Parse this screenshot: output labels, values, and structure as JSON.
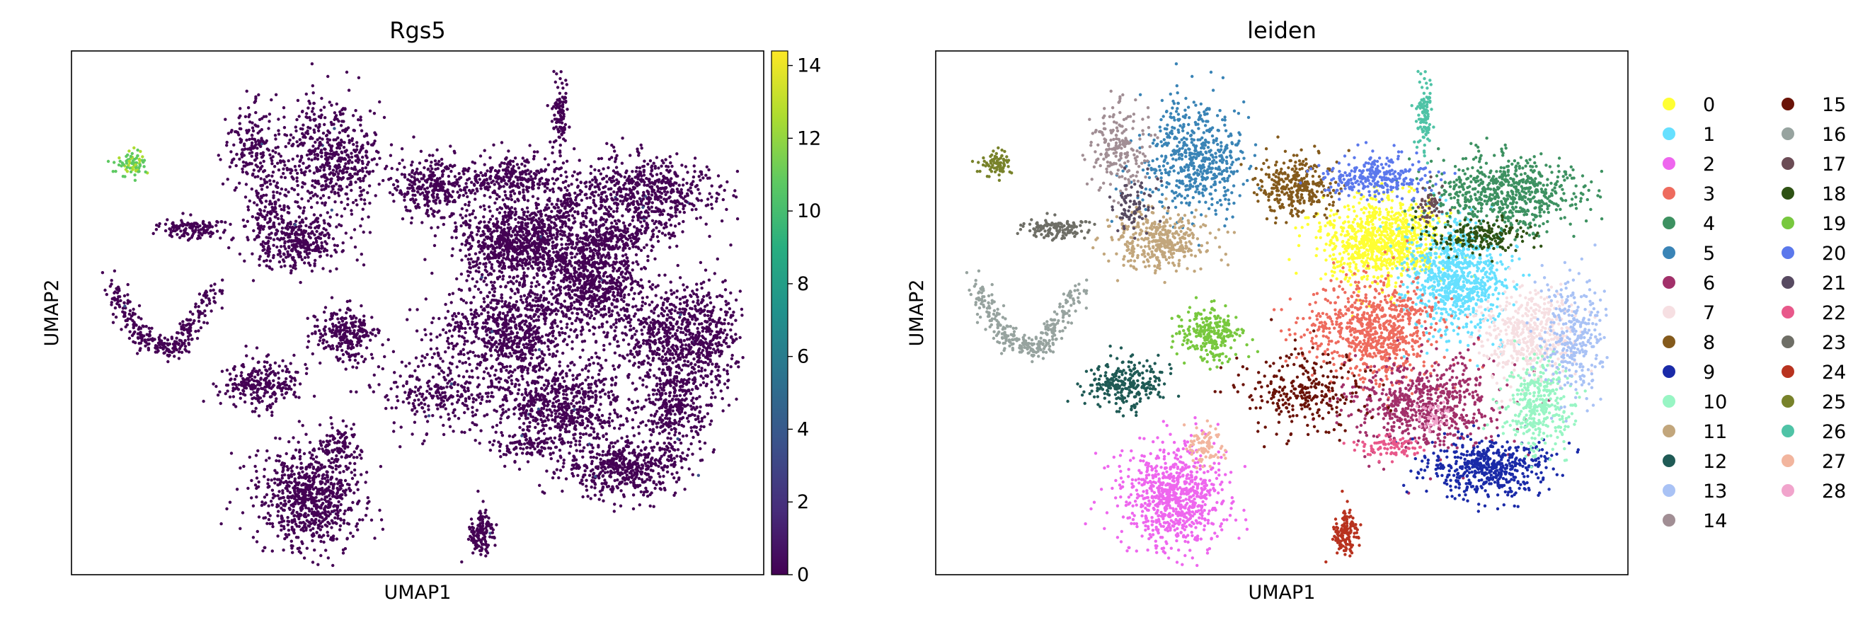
{
  "chart_data": [
    {
      "type": "scatter",
      "title": "Rgs5",
      "xlabel": "UMAP1",
      "ylabel": "UMAP2",
      "colorbar": {
        "colormap": "viridis",
        "range": [
          0,
          14.4
        ],
        "ticks": [
          0,
          2,
          4,
          6,
          8,
          10,
          12,
          14
        ]
      },
      "description_values": "Expression near 0 across nearly all cells; high values (~10-12) only in the small isolated cluster at upper-left",
      "grid": false
    },
    {
      "type": "scatter",
      "title": "leiden",
      "xlabel": "UMAP1",
      "ylabel": "UMAP2",
      "legend_position": "right",
      "grid": false,
      "categories": [
        {
          "label": "0",
          "color": "#ffff33"
        },
        {
          "label": "1",
          "color": "#66e0ff"
        },
        {
          "label": "2",
          "color": "#ee66ee"
        },
        {
          "label": "3",
          "color": "#ee6b5e"
        },
        {
          "label": "4",
          "color": "#3d9161"
        },
        {
          "label": "5",
          "color": "#3a84b6"
        },
        {
          "label": "6",
          "color": "#a2306a"
        },
        {
          "label": "7",
          "color": "#f6dfe2"
        },
        {
          "label": "8",
          "color": "#845a1c"
        },
        {
          "label": "9",
          "color": "#1a2aa8"
        },
        {
          "label": "10",
          "color": "#98f5c4"
        },
        {
          "label": "11",
          "color": "#c2a67c"
        },
        {
          "label": "12",
          "color": "#1f5a55"
        },
        {
          "label": "13",
          "color": "#a9c2f5"
        },
        {
          "label": "14",
          "color": "#a18e94"
        },
        {
          "label": "15",
          "color": "#6a1308"
        },
        {
          "label": "16",
          "color": "#97a39f"
        },
        {
          "label": "17",
          "color": "#6b4c55"
        },
        {
          "label": "18",
          "color": "#2e5214"
        },
        {
          "label": "19",
          "color": "#78c83e"
        },
        {
          "label": "20",
          "color": "#5b78ec"
        },
        {
          "label": "21",
          "color": "#574a61"
        },
        {
          "label": "22",
          "color": "#e8588a"
        },
        {
          "label": "23",
          "color": "#6e6e66"
        },
        {
          "label": "24",
          "color": "#b8321f"
        },
        {
          "label": "25",
          "color": "#78822a"
        },
        {
          "label": "26",
          "color": "#4fc3a6"
        },
        {
          "label": "27",
          "color": "#f2b59e"
        },
        {
          "label": "28",
          "color": "#f1a4cc"
        }
      ]
    }
  ]
}
